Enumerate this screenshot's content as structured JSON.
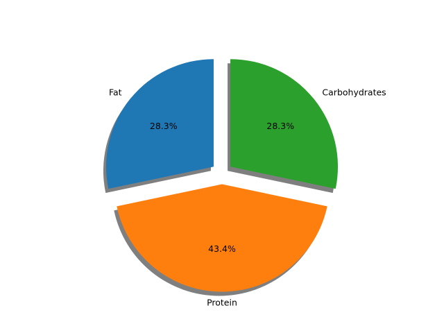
{
  "chart_data": {
    "type": "pie",
    "title": "",
    "slices": [
      {
        "label": "Fat",
        "value": 28.3,
        "pct_label": "28.3%",
        "color": "#1f77b4"
      },
      {
        "label": "Protein",
        "value": 43.4,
        "pct_label": "43.4%",
        "color": "#ff7f0e"
      },
      {
        "label": "Carbohydrates",
        "value": 28.3,
        "pct_label": "28.3%",
        "color": "#2ca02c"
      }
    ],
    "exploded": true,
    "shadow": true,
    "start_angle_deg": 90,
    "direction": "counterclockwise"
  }
}
